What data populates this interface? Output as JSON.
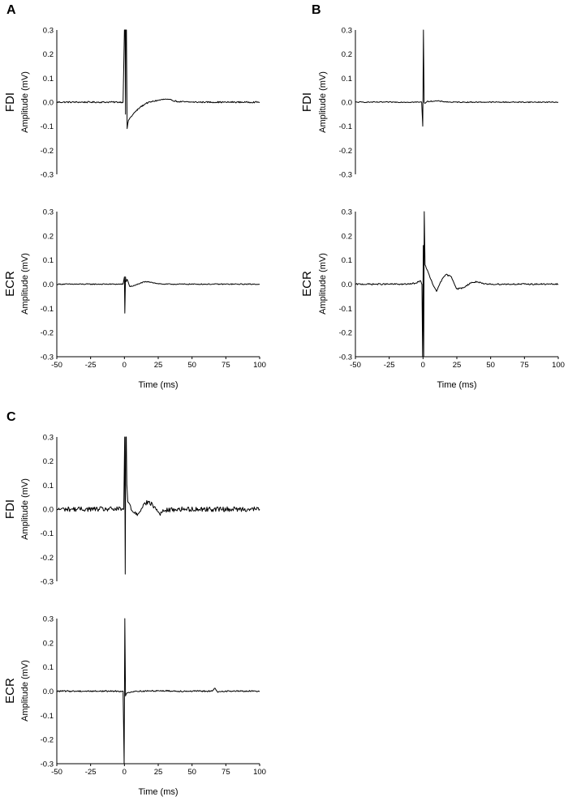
{
  "chart_data": [
    {
      "type": "line",
      "panel": "A",
      "muscle": "FDI",
      "ylabel": "Amplitude (mV)",
      "xlabel": "",
      "xlim": [
        -50,
        100
      ],
      "ylim": [
        -0.3,
        0.3
      ],
      "yticks": [
        "0.3",
        "0.2",
        "0.1",
        "0.0",
        "-0.1",
        "-0.2",
        "-0.3"
      ],
      "xticks": [],
      "noise": 0.003,
      "series": [
        {
          "name": "FDI",
          "x": [
            -50,
            -10,
            -1,
            0,
            0.5,
            0.8,
            1.0,
            1.5,
            2,
            3,
            5,
            8,
            12,
            16,
            20,
            25,
            30,
            35,
            40,
            50,
            60,
            75,
            90,
            100
          ],
          "y": [
            0,
            0,
            0,
            0.3,
            0.3,
            -0.05,
            0.3,
            0.3,
            -0.11,
            -0.075,
            -0.06,
            -0.04,
            -0.02,
            -0.005,
            0.002,
            0.008,
            0.012,
            0.008,
            0.002,
            0,
            0,
            0,
            0,
            0
          ]
        }
      ]
    },
    {
      "type": "line",
      "panel": "",
      "muscle": "ECR",
      "ylabel": "Amplitude (mV)",
      "xlabel": "Time (ms)",
      "xlim": [
        -50,
        100
      ],
      "ylim": [
        -0.3,
        0.3
      ],
      "yticks": [
        "0.3",
        "0.2",
        "0.1",
        "0.0",
        "-0.1",
        "-0.2",
        "-0.3"
      ],
      "xticks": [
        "-50",
        "-25",
        "0",
        "25",
        "50",
        "75",
        "100"
      ],
      "noise": 0.002,
      "series": [
        {
          "name": "ECR",
          "x": [
            -50,
            -5,
            -1,
            0,
            0.3,
            0.8,
            1.2,
            2,
            4,
            8,
            12,
            16,
            20,
            25,
            30,
            40,
            50,
            60,
            100
          ],
          "y": [
            0,
            0,
            0,
            0.03,
            -0.12,
            0.03,
            0.01,
            0.02,
            -0.01,
            -0.005,
            0.005,
            0.01,
            0.008,
            0.002,
            0,
            0,
            0,
            0,
            0
          ]
        }
      ]
    },
    {
      "type": "line",
      "panel": "B",
      "muscle": "FDI",
      "ylabel": "Amplitude (mV)",
      "xlabel": "",
      "xlim": [
        -50,
        100
      ],
      "ylim": [
        -0.3,
        0.3
      ],
      "yticks": [
        "0.3",
        "0.2",
        "0.1",
        "0.0",
        "-0.1",
        "-0.2",
        "-0.3"
      ],
      "xticks": [],
      "noise": 0.002,
      "series": [
        {
          "name": "FDI",
          "x": [
            -50,
            -1,
            -0.2,
            0.3,
            0.8,
            1.5,
            3,
            10,
            20,
            30,
            50,
            100
          ],
          "y": [
            0,
            0,
            -0.1,
            0.3,
            0,
            -0.005,
            0.003,
            0.005,
            0,
            0,
            0,
            0
          ]
        }
      ]
    },
    {
      "type": "line",
      "panel": "",
      "muscle": "ECR",
      "ylabel": "Amplitude (mV)",
      "xlabel": "Time (ms)",
      "xlim": [
        -50,
        100
      ],
      "ylim": [
        -0.3,
        0.3
      ],
      "yticks": [
        "0.3",
        "0.2",
        "0.1",
        "0.0",
        "-0.1",
        "-0.2",
        "-0.3"
      ],
      "xticks": [
        "-50",
        "-25",
        "0",
        "25",
        "50",
        "75",
        "100"
      ],
      "noise": 0.003,
      "series": [
        {
          "name": "ECR",
          "x": [
            -50,
            -10,
            -5,
            -2,
            -0.8,
            -0.3,
            0.2,
            0.5,
            0.9,
            1.5,
            3,
            5,
            8,
            10,
            13,
            17,
            21,
            25,
            30,
            35,
            40,
            45,
            50,
            60,
            100
          ],
          "y": [
            0,
            0,
            0.005,
            0.015,
            0.0,
            -0.3,
            0.16,
            -0.3,
            0.3,
            0.08,
            0.06,
            0.03,
            -0.01,
            -0.03,
            0.01,
            0.04,
            0.03,
            -0.02,
            -0.015,
            0.005,
            0.01,
            0,
            0,
            0,
            0
          ]
        }
      ]
    },
    {
      "type": "line",
      "panel": "C",
      "muscle": "FDI",
      "ylabel": "Amplitude (mV)",
      "xlabel": "",
      "xlim": [
        -50,
        100
      ],
      "ylim": [
        -0.3,
        0.3
      ],
      "yticks": [
        "0.3",
        "0.2",
        "0.1",
        "0.0",
        "-0.1",
        "-0.2",
        "-0.3"
      ],
      "xticks": [],
      "noise": 0.01,
      "series": [
        {
          "name": "FDI",
          "x": [
            -50,
            -2,
            -0.5,
            0.2,
            0.6,
            1.0,
            1.4,
            1.8,
            2.5,
            4,
            6,
            10,
            14,
            18,
            22,
            26,
            30,
            40,
            100
          ],
          "y": [
            0,
            0,
            0,
            0.3,
            -0.27,
            0.3,
            0.3,
            0.1,
            0.03,
            0.02,
            -0.01,
            -0.02,
            0.02,
            0.03,
            0.01,
            -0.02,
            -0.005,
            0,
            0
          ]
        }
      ]
    },
    {
      "type": "line",
      "panel": "",
      "muscle": "ECR",
      "ylabel": "Amplitude (mV)",
      "xlabel": "Time (ms)",
      "xlim": [
        -50,
        100
      ],
      "ylim": [
        -0.3,
        0.3
      ],
      "yticks": [
        "0.3",
        "0.2",
        "0.1",
        "0.0",
        "-0.1",
        "-0.2",
        "-0.3"
      ],
      "xticks": [
        "-50",
        "-25",
        "0",
        "25",
        "50",
        "75",
        "100"
      ],
      "noise": 0.003,
      "series": [
        {
          "name": "ECR",
          "x": [
            -50,
            -5,
            -1,
            -0.2,
            0.3,
            0.8,
            1.5,
            3,
            8,
            15,
            25,
            40,
            60,
            65,
            67,
            69,
            72,
            80,
            100
          ],
          "y": [
            0,
            0,
            0,
            -0.3,
            0.3,
            -0.02,
            -0.01,
            -0.005,
            0,
            0,
            0.002,
            0,
            0,
            0,
            0.012,
            -0.005,
            0,
            0,
            0
          ]
        }
      ]
    }
  ]
}
